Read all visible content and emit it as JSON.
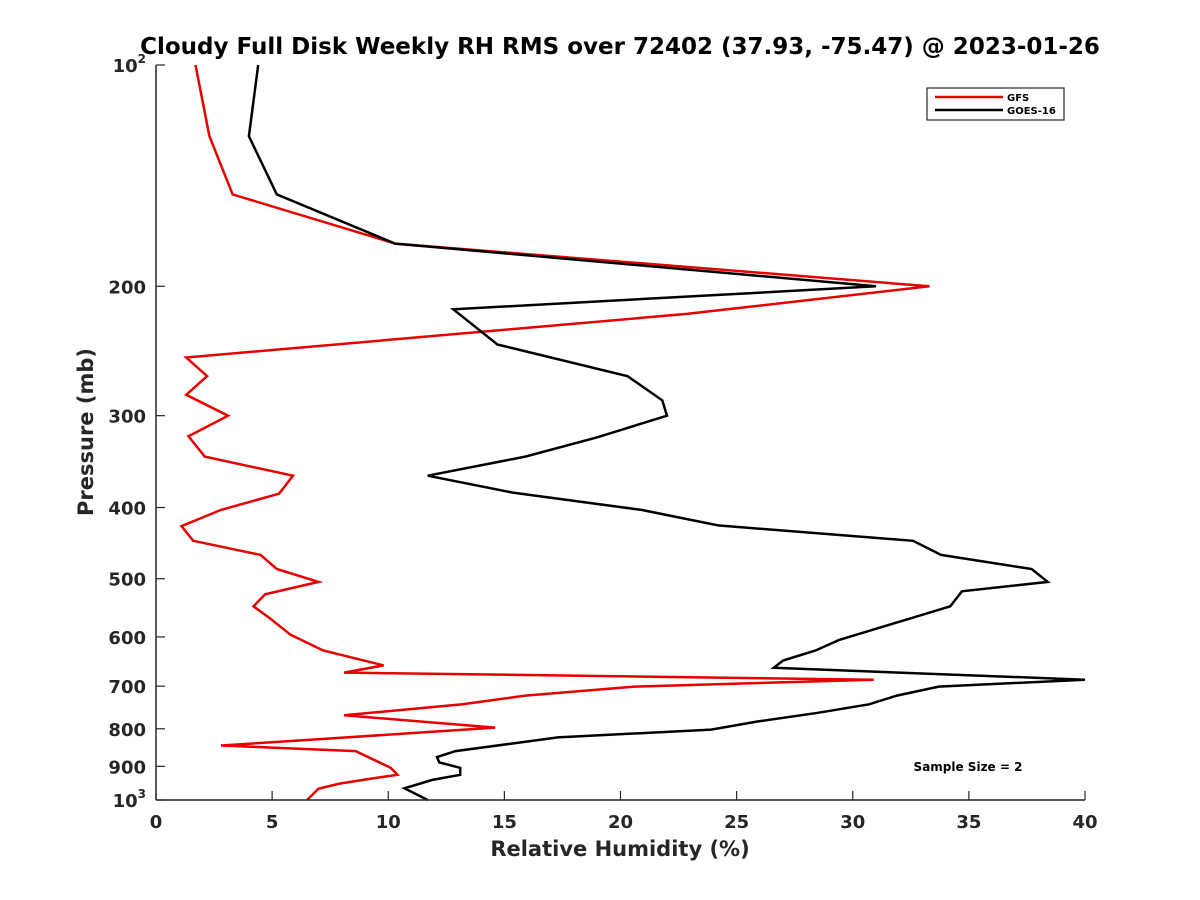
{
  "chart_data": {
    "type": "line",
    "title": "Cloudy Full Disk Weekly RH RMS over 72402 (37.93, -75.47) @ 2023-01-26",
    "xlabel": "Relative Humidity (%)",
    "ylabel": "Pressure (mb)",
    "xlim": [
      0,
      40
    ],
    "ylim": [
      100,
      1000
    ],
    "y_scale": "log",
    "y_reversed": true,
    "x_ticks": [
      0,
      5,
      10,
      15,
      20,
      25,
      30,
      35,
      40
    ],
    "x_tick_labels": [
      "0",
      "5",
      "10",
      "15",
      "20",
      "25",
      "30",
      "35",
      "40"
    ],
    "y_ticks": [
      100,
      200,
      300,
      400,
      500,
      600,
      700,
      800,
      900,
      1000
    ],
    "y_tick_labels": [
      {
        "base": "10",
        "sup": "2"
      },
      {
        "base": "200",
        "sup": ""
      },
      {
        "base": "300",
        "sup": ""
      },
      {
        "base": "400",
        "sup": ""
      },
      {
        "base": "500",
        "sup": ""
      },
      {
        "base": "600",
        "sup": ""
      },
      {
        "base": "700",
        "sup": ""
      },
      {
        "base": "800",
        "sup": ""
      },
      {
        "base": "900",
        "sup": ""
      },
      {
        "base": "10",
        "sup": "3"
      }
    ],
    "grid": false,
    "legend_position": "top-right",
    "annotation": "Sample Size = 2",
    "series": [
      {
        "name": "GFS",
        "color": "#e60000",
        "points": [
          [
            1.7,
            100
          ],
          [
            2.3,
            125
          ],
          [
            3.3,
            150
          ],
          [
            10.3,
            175
          ],
          [
            33.3,
            200
          ],
          [
            22.9,
            218
          ],
          [
            1.3,
            250
          ],
          [
            2.2,
            265
          ],
          [
            1.3,
            281
          ],
          [
            3.1,
            300
          ],
          [
            1.4,
            320
          ],
          [
            2.1,
            341
          ],
          [
            5.9,
            362
          ],
          [
            5.3,
            383
          ],
          [
            2.8,
            403
          ],
          [
            1.1,
            424
          ],
          [
            1.6,
            444
          ],
          [
            4.5,
            464
          ],
          [
            5.2,
            485
          ],
          [
            7.0,
            505
          ],
          [
            4.7,
            525
          ],
          [
            4.2,
            545
          ],
          [
            4.9,
            566
          ],
          [
            5.8,
            596
          ],
          [
            7.2,
            626
          ],
          [
            9.8,
            656
          ],
          [
            8.1,
            671
          ],
          [
            30.9,
            686
          ],
          [
            20.6,
            701
          ],
          [
            15.9,
            721
          ],
          [
            13.2,
            741
          ],
          [
            8.1,
            767
          ],
          [
            14.6,
            797
          ],
          [
            6.9,
            827
          ],
          [
            2.8,
            843
          ],
          [
            8.6,
            858
          ],
          [
            10.1,
            904
          ],
          [
            10.4,
            924
          ],
          [
            9.3,
            935
          ],
          [
            7.9,
            950
          ],
          [
            7.0,
            965
          ],
          [
            6.5,
            1000
          ]
        ]
      },
      {
        "name": "GOES-16",
        "color": "#000000",
        "points": [
          [
            4.4,
            100
          ],
          [
            4.0,
            125
          ],
          [
            5.2,
            150
          ],
          [
            10.3,
            175
          ],
          [
            31.0,
            200
          ],
          [
            12.8,
            215
          ],
          [
            14.7,
            240
          ],
          [
            20.3,
            265
          ],
          [
            21.8,
            286
          ],
          [
            22.0,
            300
          ],
          [
            19.0,
            321
          ],
          [
            15.9,
            341
          ],
          [
            11.7,
            362
          ],
          [
            15.4,
            382
          ],
          [
            20.9,
            403
          ],
          [
            24.2,
            423
          ],
          [
            32.6,
            444
          ],
          [
            33.8,
            464
          ],
          [
            37.7,
            485
          ],
          [
            38.4,
            505
          ],
          [
            34.7,
            520
          ],
          [
            34.2,
            545
          ],
          [
            32.5,
            566
          ],
          [
            30.9,
            586
          ],
          [
            29.4,
            606
          ],
          [
            28.4,
            626
          ],
          [
            27.0,
            646
          ],
          [
            26.6,
            661
          ],
          [
            40.0,
            686
          ],
          [
            33.7,
            701
          ],
          [
            31.9,
            721
          ],
          [
            30.7,
            741
          ],
          [
            28.5,
            761
          ],
          [
            25.9,
            782
          ],
          [
            23.9,
            802
          ],
          [
            17.3,
            822
          ],
          [
            12.9,
            858
          ],
          [
            12.1,
            874
          ],
          [
            12.2,
            889
          ],
          [
            13.1,
            904
          ],
          [
            13.1,
            924
          ],
          [
            11.9,
            939
          ],
          [
            10.7,
            964
          ],
          [
            11.7,
            1000
          ]
        ]
      }
    ]
  }
}
